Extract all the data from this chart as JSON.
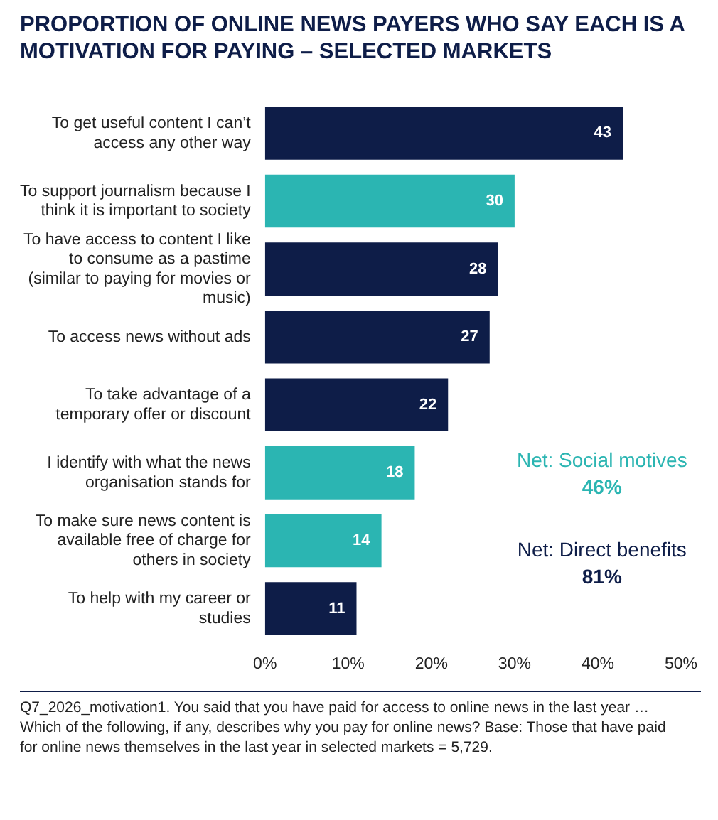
{
  "chart_data": {
    "type": "bar",
    "orientation": "horizontal",
    "title": "PROPORTION OF ONLINE NEWS PAYERS WHO SAY EACH IS A MOTIVATION FOR PAYING – SELECTED MARKETS",
    "categories": [
      "To get useful content I can’t access any other way",
      "To support journalism because I think it is important to society",
      "To have access to content I like to consume as a pastime (similar to paying for movies or music)",
      "To access news without ads",
      "To take advantage of a temporary offer or discount",
      "I identify with what the news organisation stands for",
      "To make sure news content is available free of charge for others in society",
      "To help with my career or studies"
    ],
    "values": [
      43,
      30,
      28,
      27,
      22,
      18,
      14,
      11
    ],
    "colors": [
      "#0e1d48",
      "#2bb5b2",
      "#0e1d48",
      "#0e1d48",
      "#0e1d48",
      "#2bb5b2",
      "#2bb5b2",
      "#0e1d48"
    ],
    "xlim": [
      0,
      50
    ],
    "xticks": [
      {
        "value": 0,
        "label": "0%"
      },
      {
        "value": 10,
        "label": "10%"
      },
      {
        "value": 20,
        "label": "20%"
      },
      {
        "value": 30,
        "label": "30%"
      },
      {
        "value": 40,
        "label": "40%"
      },
      {
        "value": 50,
        "label": "50%"
      }
    ],
    "grid": false,
    "data_labels": true,
    "annotations": [
      "Net: Social motives",
      "46%",
      "Net: Direct benefits",
      "81%",
      "Q7_2026_motivation1. You said that you have paid for access to online news in the last year … Which of the following, if any, describes why you pay for online news? Base: Those that have paid for online news themselves in the last year in selected markets = 5,729."
    ]
  }
}
